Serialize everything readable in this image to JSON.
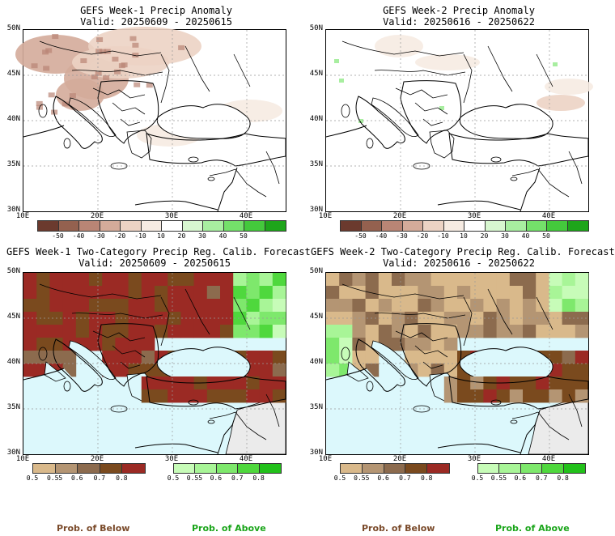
{
  "panels": [
    {
      "title": "GEFS Week-1 Precip Anomaly",
      "valid": "Valid: 20250609 - 20250615"
    },
    {
      "title": "GEFS Week-2 Precip Anomaly",
      "valid": "Valid: 20250616 - 20250622"
    },
    {
      "title": "GEFS Week-1 Two-Category Precip Reg. Calib. Forecast",
      "valid": "Valid: 20250609 - 20250615"
    },
    {
      "title": "GEFS Week-2 Two-Category Precip Reg. Calib. Forecast",
      "valid": "Valid: 20250616 - 20250622"
    }
  ],
  "axes": {
    "lat_labels": [
      "50N",
      "45N",
      "40N",
      "35N",
      "30N"
    ],
    "lon_labels": [
      "10E",
      "20E",
      "30E",
      "40E"
    ]
  },
  "anomaly_colorbar": {
    "labels": [
      "-50",
      "-40",
      "-30",
      "-20",
      "-10",
      "10",
      "20",
      "30",
      "40",
      "50"
    ],
    "colors": [
      "#6b3a2e",
      "#94614f",
      "#b98575",
      "#d4ab9a",
      "#ecd3c4",
      "#f6ebe2",
      "#ffffff",
      "#d8f7d0",
      "#a8eea0",
      "#74e06a",
      "#44c93c",
      "#1ea51a"
    ]
  },
  "below_colorbar": {
    "labels": [
      "0.5",
      "0.55",
      "0.6",
      "0.7",
      "0.8"
    ],
    "colors": [
      "#d9b98b",
      "#b49573",
      "#8c6b4e",
      "#7a4a1e",
      "#9b2a24"
    ]
  },
  "above_colorbar": {
    "labels": [
      "0.5",
      "0.55",
      "0.6",
      "0.7",
      "0.8"
    ],
    "colors": [
      "#c7fcb8",
      "#a8f597",
      "#7ee86c",
      "#4fd83d",
      "#22c11a"
    ]
  },
  "footer": {
    "below_label": "Prob. of Below",
    "above_label": "Prob. of Above",
    "below_color": "#7a4a2a",
    "above_color": "#1aa51a"
  },
  "water_color": "#dcf8fc",
  "outside_color": "#ebebeb"
}
